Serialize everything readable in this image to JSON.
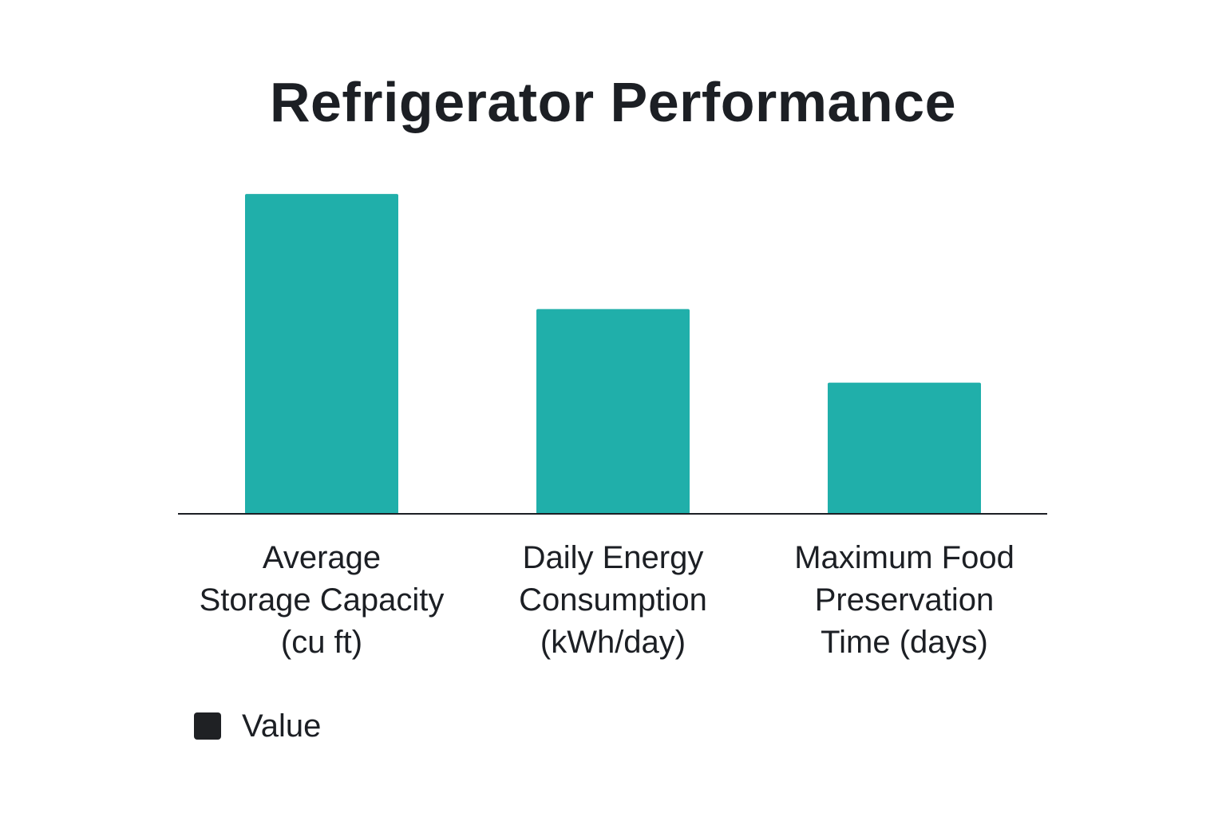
{
  "chart_data": {
    "type": "bar",
    "title": "Refrigerator Performance",
    "categories": [
      [
        "Average",
        "Storage Capacity",
        "(cu ft)"
      ],
      [
        "Daily Energy",
        "Consumption",
        "(kWh/day)"
      ],
      [
        "Maximum Food",
        "Preservation",
        "Time (days)"
      ]
    ],
    "series": [
      {
        "name": "Value",
        "values": [
          100,
          64,
          41
        ]
      }
    ],
    "ylim": [
      0,
      110
    ],
    "grid": false,
    "legend": "bottom-left",
    "bar_color": "#20AFAA",
    "legend_swatch_color": "#1F2124",
    "axis_color": "#1c1f24"
  }
}
